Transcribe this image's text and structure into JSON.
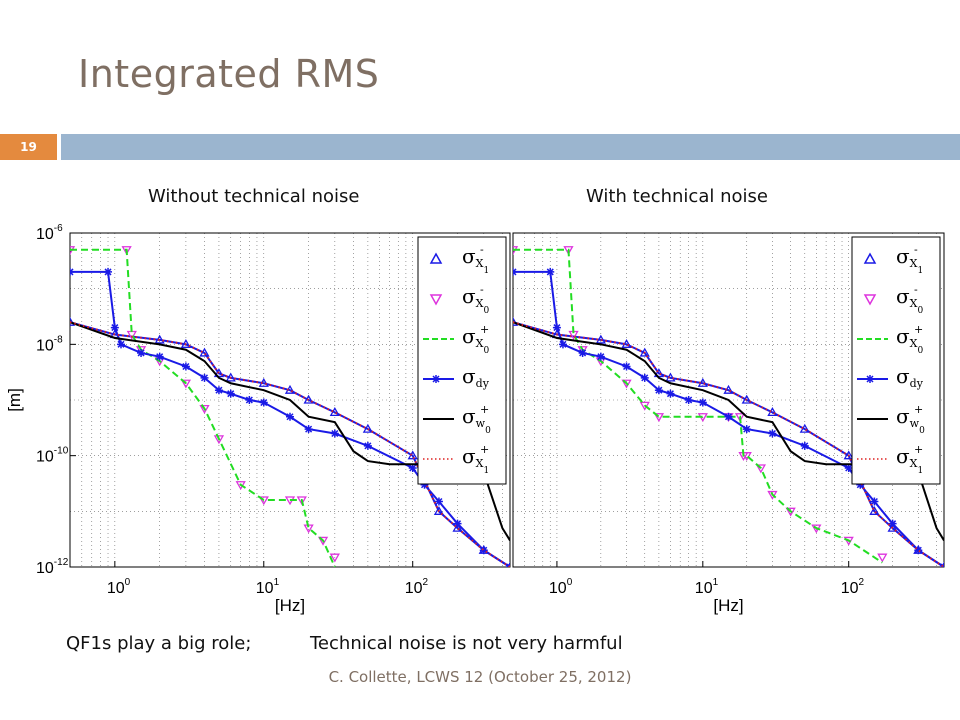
{
  "slide": {
    "title": "Integrated RMS",
    "number": "19",
    "caption_left": "Without technical noise",
    "caption_right": "With technical noise",
    "note_left": "QF1s play a big role;",
    "note_right": "Technical noise is not very harmful",
    "footer": "C. Collette, LCWS 12 (October 25, 2012)",
    "colors": {
      "title": "#7f6f63",
      "accent_orange": "#e48a3e",
      "accent_blue": "#9bb5cf"
    }
  },
  "chart_data": [
    {
      "type": "line",
      "panel": "left",
      "title": "Without technical noise",
      "xlabel": "[Hz]",
      "ylabel": "[m]",
      "xscale": "log",
      "yscale": "log",
      "xlim": [
        0.5,
        450
      ],
      "ylim": [
        1e-12,
        1e-06
      ],
      "grid": true,
      "legend_position": "top-right",
      "x_ticks": [
        {
          "base": "10",
          "exp": "0"
        },
        {
          "base": "10",
          "exp": "1"
        },
        {
          "base": "10",
          "exp": "2"
        }
      ],
      "y_ticks": [
        {
          "base": "10",
          "exp": "-6"
        },
        {
          "base": "10",
          "exp": "-8"
        },
        {
          "base": "10",
          "exp": "-10"
        },
        {
          "base": "10",
          "exp": "-12"
        }
      ],
      "series": [
        {
          "name": "σX1-",
          "color": "#1a1ae6",
          "marker": "triangle-up",
          "line": "solid",
          "x": [
            0.5,
            1,
            2,
            3,
            4,
            5,
            6,
            10,
            15,
            20,
            30,
            50,
            100,
            150,
            200,
            300,
            450
          ],
          "y": [
            2.5e-08,
            1.5e-08,
            1.2e-08,
            1e-08,
            7e-09,
            3e-09,
            2.5e-09,
            2e-09,
            1.5e-09,
            1e-09,
            6e-10,
            3e-10,
            1e-10,
            1e-11,
            5e-12,
            2e-12,
            1e-12
          ]
        },
        {
          "name": "σX0-",
          "color": "#dd33dd",
          "marker": "triangle-down",
          "line": "none",
          "x": [
            0.5,
            1.2,
            1.3,
            1.5,
            2,
            3,
            4,
            5,
            7,
            10,
            15,
            18,
            20,
            25,
            30
          ],
          "y": [
            5e-07,
            5e-07,
            1.5e-08,
            8e-09,
            5e-09,
            2e-09,
            7e-10,
            2e-10,
            3e-11,
            1.6e-11,
            1.6e-11,
            1.6e-11,
            5e-12,
            3e-12,
            1.5e-12
          ]
        },
        {
          "name": "σX0+",
          "color": "#22dd22",
          "marker": "none",
          "line": "dashed",
          "x": [
            0.5,
            1.2,
            1.3,
            1.5,
            2,
            3,
            4,
            5,
            7,
            10,
            15,
            18,
            20,
            25,
            30
          ],
          "y": [
            5e-07,
            5e-07,
            1.5e-08,
            8e-09,
            5e-09,
            2e-09,
            7e-10,
            2e-10,
            3e-11,
            1.6e-11,
            1.6e-11,
            1.6e-11,
            5e-12,
            3e-12,
            1e-12
          ]
        },
        {
          "name": "σdy",
          "color": "#1a1ae6",
          "marker": "star",
          "line": "solid",
          "x": [
            0.5,
            0.9,
            1,
            1.1,
            1.5,
            2,
            3,
            4,
            5,
            6,
            8,
            10,
            15,
            20,
            30,
            50,
            100,
            120,
            150,
            200,
            300,
            450
          ],
          "y": [
            2e-07,
            2e-07,
            2e-08,
            1e-08,
            7e-09,
            6e-09,
            4e-09,
            2.5e-09,
            1.5e-09,
            1.3e-09,
            1e-09,
            9e-10,
            5e-10,
            3e-10,
            2.5e-10,
            1.5e-10,
            6e-11,
            3e-11,
            1.5e-11,
            6e-12,
            2e-12,
            1e-12
          ]
        },
        {
          "name": "σw0+",
          "color": "#000000",
          "marker": "none",
          "line": "solid",
          "x": [
            0.5,
            1,
            2,
            3,
            4,
            5,
            6,
            10,
            15,
            20,
            30,
            40,
            50,
            70,
            100,
            200,
            300,
            400,
            450
          ],
          "y": [
            2.5e-08,
            1.3e-08,
            1e-08,
            8e-09,
            5e-09,
            2.5e-09,
            2e-09,
            1.5e-09,
            1e-09,
            5e-10,
            4e-10,
            1.2e-10,
            8e-11,
            7e-11,
            7e-11,
            7e-11,
            5e-11,
            5e-12,
            3e-12
          ]
        },
        {
          "name": "σX1+",
          "color": "#dd2222",
          "marker": "none",
          "line": "dotted",
          "x": [
            0.5,
            1,
            2,
            3,
            4,
            5,
            6,
            10,
            15,
            20,
            30,
            50,
            100,
            150,
            200,
            300,
            450
          ],
          "y": [
            2.5e-08,
            1.5e-08,
            1.2e-08,
            1e-08,
            7e-09,
            3e-09,
            2.5e-09,
            2e-09,
            1.5e-09,
            1e-09,
            6e-10,
            3e-10,
            1e-10,
            1e-11,
            5e-12,
            2e-12,
            1e-12
          ]
        }
      ]
    },
    {
      "type": "line",
      "panel": "right",
      "title": "With technical noise",
      "xlabel": "[Hz]",
      "ylabel": "",
      "xscale": "log",
      "yscale": "log",
      "xlim": [
        0.5,
        450
      ],
      "ylim": [
        1e-12,
        1e-06
      ],
      "grid": true,
      "legend_position": "top-right",
      "x_ticks": [
        {
          "base": "10",
          "exp": "0"
        },
        {
          "base": "10",
          "exp": "1"
        },
        {
          "base": "10",
          "exp": "2"
        }
      ],
      "y_ticks": [],
      "series": [
        {
          "name": "σX1-",
          "color": "#1a1ae6",
          "marker": "triangle-up",
          "line": "solid",
          "x": [
            0.5,
            1,
            2,
            3,
            4,
            5,
            6,
            10,
            15,
            20,
            30,
            50,
            100,
            150,
            200,
            300,
            450
          ],
          "y": [
            2.5e-08,
            1.5e-08,
            1.2e-08,
            1e-08,
            7e-09,
            3e-09,
            2.5e-09,
            2e-09,
            1.5e-09,
            1e-09,
            6e-10,
            3e-10,
            1e-10,
            1e-11,
            5e-12,
            2e-12,
            1e-12
          ]
        },
        {
          "name": "σX0-",
          "color": "#dd33dd",
          "marker": "triangle-down",
          "line": "none",
          "x": [
            0.5,
            1.2,
            1.3,
            1.5,
            2,
            3,
            4,
            5,
            10,
            15,
            18,
            19,
            20,
            25,
            30,
            40,
            60,
            100,
            170
          ],
          "y": [
            5e-07,
            5e-07,
            1.5e-08,
            8e-09,
            5e-09,
            2e-09,
            8e-10,
            5e-10,
            5e-10,
            5e-10,
            5e-10,
            1e-10,
            1e-10,
            6e-11,
            2e-11,
            1e-11,
            5e-12,
            3e-12,
            1.5e-12
          ]
        },
        {
          "name": "σX0+",
          "color": "#22dd22",
          "marker": "none",
          "line": "dashed",
          "x": [
            0.5,
            1.2,
            1.3,
            1.5,
            2,
            3,
            4,
            5,
            10,
            15,
            18,
            19,
            20,
            25,
            30,
            40,
            60,
            100,
            170
          ],
          "y": [
            5e-07,
            5e-07,
            1.5e-08,
            8e-09,
            5e-09,
            2e-09,
            8e-10,
            5e-10,
            5e-10,
            5e-10,
            5e-10,
            1e-10,
            1e-10,
            6e-11,
            2e-11,
            1e-11,
            5e-12,
            3e-12,
            1.2e-12
          ]
        },
        {
          "name": "σdy",
          "color": "#1a1ae6",
          "marker": "star",
          "line": "solid",
          "x": [
            0.5,
            0.9,
            1,
            1.1,
            1.5,
            2,
            3,
            4,
            5,
            6,
            8,
            10,
            15,
            20,
            30,
            50,
            100,
            120,
            150,
            200,
            300,
            450
          ],
          "y": [
            2e-07,
            2e-07,
            2e-08,
            1e-08,
            7e-09,
            6e-09,
            4e-09,
            2.5e-09,
            1.5e-09,
            1.3e-09,
            1e-09,
            9e-10,
            5e-10,
            3e-10,
            2.5e-10,
            1.5e-10,
            6e-11,
            3e-11,
            1.5e-11,
            6e-12,
            2e-12,
            1e-12
          ]
        },
        {
          "name": "σw0+",
          "color": "#000000",
          "marker": "none",
          "line": "solid",
          "x": [
            0.5,
            1,
            2,
            3,
            4,
            5,
            6,
            10,
            15,
            20,
            30,
            40,
            50,
            70,
            100,
            200,
            300,
            400,
            450
          ],
          "y": [
            2.5e-08,
            1.3e-08,
            1e-08,
            8e-09,
            5e-09,
            2.5e-09,
            2e-09,
            1.5e-09,
            1e-09,
            5e-10,
            4e-10,
            1.2e-10,
            8e-11,
            7e-11,
            7e-11,
            7e-11,
            5e-11,
            5e-12,
            3e-12
          ]
        },
        {
          "name": "σX1+",
          "color": "#dd2222",
          "marker": "none",
          "line": "dotted",
          "x": [
            0.5,
            1,
            2,
            3,
            4,
            5,
            6,
            10,
            15,
            20,
            30,
            50,
            100,
            150,
            200,
            300,
            450
          ],
          "y": [
            2.5e-08,
            1.5e-08,
            1.2e-08,
            1e-08,
            7e-09,
            3e-09,
            2.5e-09,
            2e-09,
            1.5e-09,
            1e-09,
            6e-10,
            3e-10,
            1e-10,
            1e-11,
            5e-12,
            2e-12,
            1e-12
          ]
        }
      ]
    }
  ],
  "legend": [
    {
      "icon": "triangle-up-marker-icon",
      "sym": "σ",
      "sub": "X",
      "subsub": "1",
      "sup": "-",
      "color": "#1a1ae6"
    },
    {
      "icon": "triangle-down-marker-icon",
      "sym": "σ",
      "sub": "X",
      "subsub": "0",
      "sup": "-",
      "color": "#dd33dd"
    },
    {
      "icon": "dashed-line-icon",
      "sym": "σ",
      "sub": "X",
      "subsub": "0",
      "sup": "+",
      "color": "#22dd22"
    },
    {
      "icon": "star-line-icon",
      "sym": "σ",
      "sub": "dy",
      "subsub": "",
      "sup": "",
      "color": "#1a1ae6"
    },
    {
      "icon": "solid-line-icon",
      "sym": "σ",
      "sub": "w",
      "subsub": "0",
      "sup": "+",
      "color": "#000000"
    },
    {
      "icon": "dotted-line-icon",
      "sym": "σ",
      "sub": "X",
      "subsub": "1",
      "sup": "+",
      "color": "#dd2222"
    }
  ]
}
